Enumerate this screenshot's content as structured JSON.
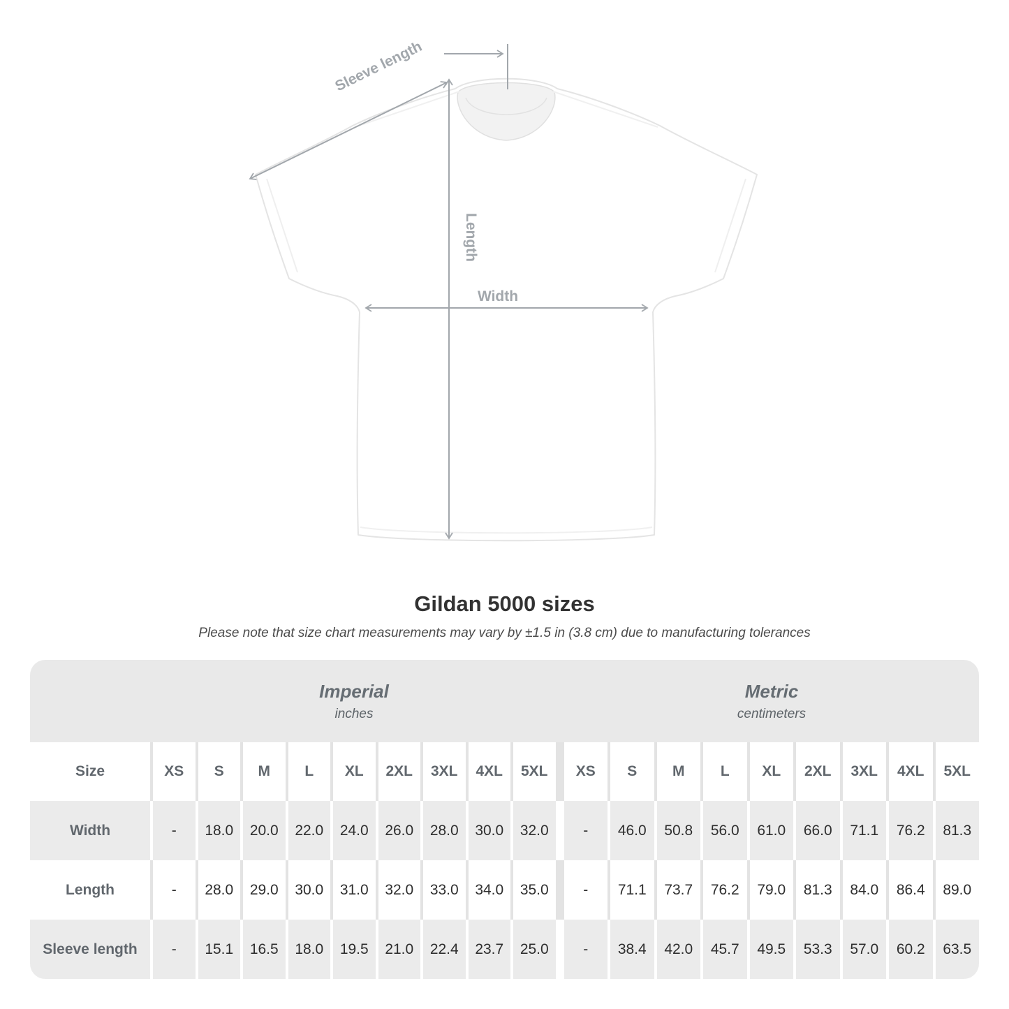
{
  "diagram": {
    "sleeve_label": "Sleeve length",
    "length_label": "Length",
    "width_label": "Width"
  },
  "title": "Gildan 5000 sizes",
  "subtitle": "Please note that size chart measurements may vary by ±1.5 in (3.8 cm) due to manufacturing tolerances",
  "table": {
    "sections": [
      {
        "name": "Imperial",
        "unit": "inches"
      },
      {
        "name": "Metric",
        "unit": "centimeters"
      }
    ],
    "size_header": "Size",
    "sizes": [
      "XS",
      "S",
      "M",
      "L",
      "XL",
      "2XL",
      "3XL",
      "4XL",
      "5XL"
    ],
    "rows": [
      {
        "label": "Width",
        "imperial": [
          "-",
          "18.0",
          "20.0",
          "22.0",
          "24.0",
          "26.0",
          "28.0",
          "30.0",
          "32.0"
        ],
        "metric": [
          "-",
          "46.0",
          "50.8",
          "56.0",
          "61.0",
          "66.0",
          "71.1",
          "76.2",
          "81.3"
        ]
      },
      {
        "label": "Length",
        "imperial": [
          "-",
          "28.0",
          "29.0",
          "30.0",
          "31.0",
          "32.0",
          "33.0",
          "34.0",
          "35.0"
        ],
        "metric": [
          "-",
          "71.1",
          "73.7",
          "76.2",
          "79.0",
          "81.3",
          "84.0",
          "86.4",
          "89.0"
        ]
      },
      {
        "label": "Sleeve length",
        "imperial": [
          "-",
          "15.1",
          "16.5",
          "18.0",
          "19.5",
          "21.0",
          "22.4",
          "23.7",
          "25.0"
        ],
        "metric": [
          "-",
          "38.4",
          "42.0",
          "45.7",
          "49.5",
          "53.3",
          "57.0",
          "60.2",
          "63.5"
        ]
      }
    ]
  },
  "colors": {
    "band_gray": "#e9e9e9",
    "cell_gray": "#ebebeb",
    "divider_gray": "#e3e3e3",
    "header_text": "#61676d",
    "value_text": "#2e2e2e",
    "annotation_gray": "#a2a7ac",
    "title_text": "#323232"
  },
  "chart_data": {
    "type": "table",
    "title": "Gildan 5000 sizes",
    "note": "Please note that size chart measurements may vary by ±1.5 in (3.8 cm) due to manufacturing tolerances",
    "column_groups": [
      {
        "label": "Imperial",
        "unit": "inches"
      },
      {
        "label": "Metric",
        "unit": "centimeters"
      }
    ],
    "columns": [
      "XS",
      "S",
      "M",
      "L",
      "XL",
      "2XL",
      "3XL",
      "4XL",
      "5XL"
    ],
    "rows": [
      {
        "label": "Width",
        "imperial_inches": [
          null,
          18.0,
          20.0,
          22.0,
          24.0,
          26.0,
          28.0,
          30.0,
          32.0
        ],
        "metric_cm": [
          null,
          46.0,
          50.8,
          56.0,
          61.0,
          66.0,
          71.1,
          76.2,
          81.3
        ]
      },
      {
        "label": "Length",
        "imperial_inches": [
          null,
          28.0,
          29.0,
          30.0,
          31.0,
          32.0,
          33.0,
          34.0,
          35.0
        ],
        "metric_cm": [
          null,
          71.1,
          73.7,
          76.2,
          79.0,
          81.3,
          84.0,
          86.4,
          89.0
        ]
      },
      {
        "label": "Sleeve length",
        "imperial_inches": [
          null,
          15.1,
          16.5,
          18.0,
          19.5,
          21.0,
          22.4,
          23.7,
          25.0
        ],
        "metric_cm": [
          null,
          38.4,
          42.0,
          45.7,
          49.5,
          53.3,
          57.0,
          60.2,
          63.5
        ]
      }
    ]
  }
}
